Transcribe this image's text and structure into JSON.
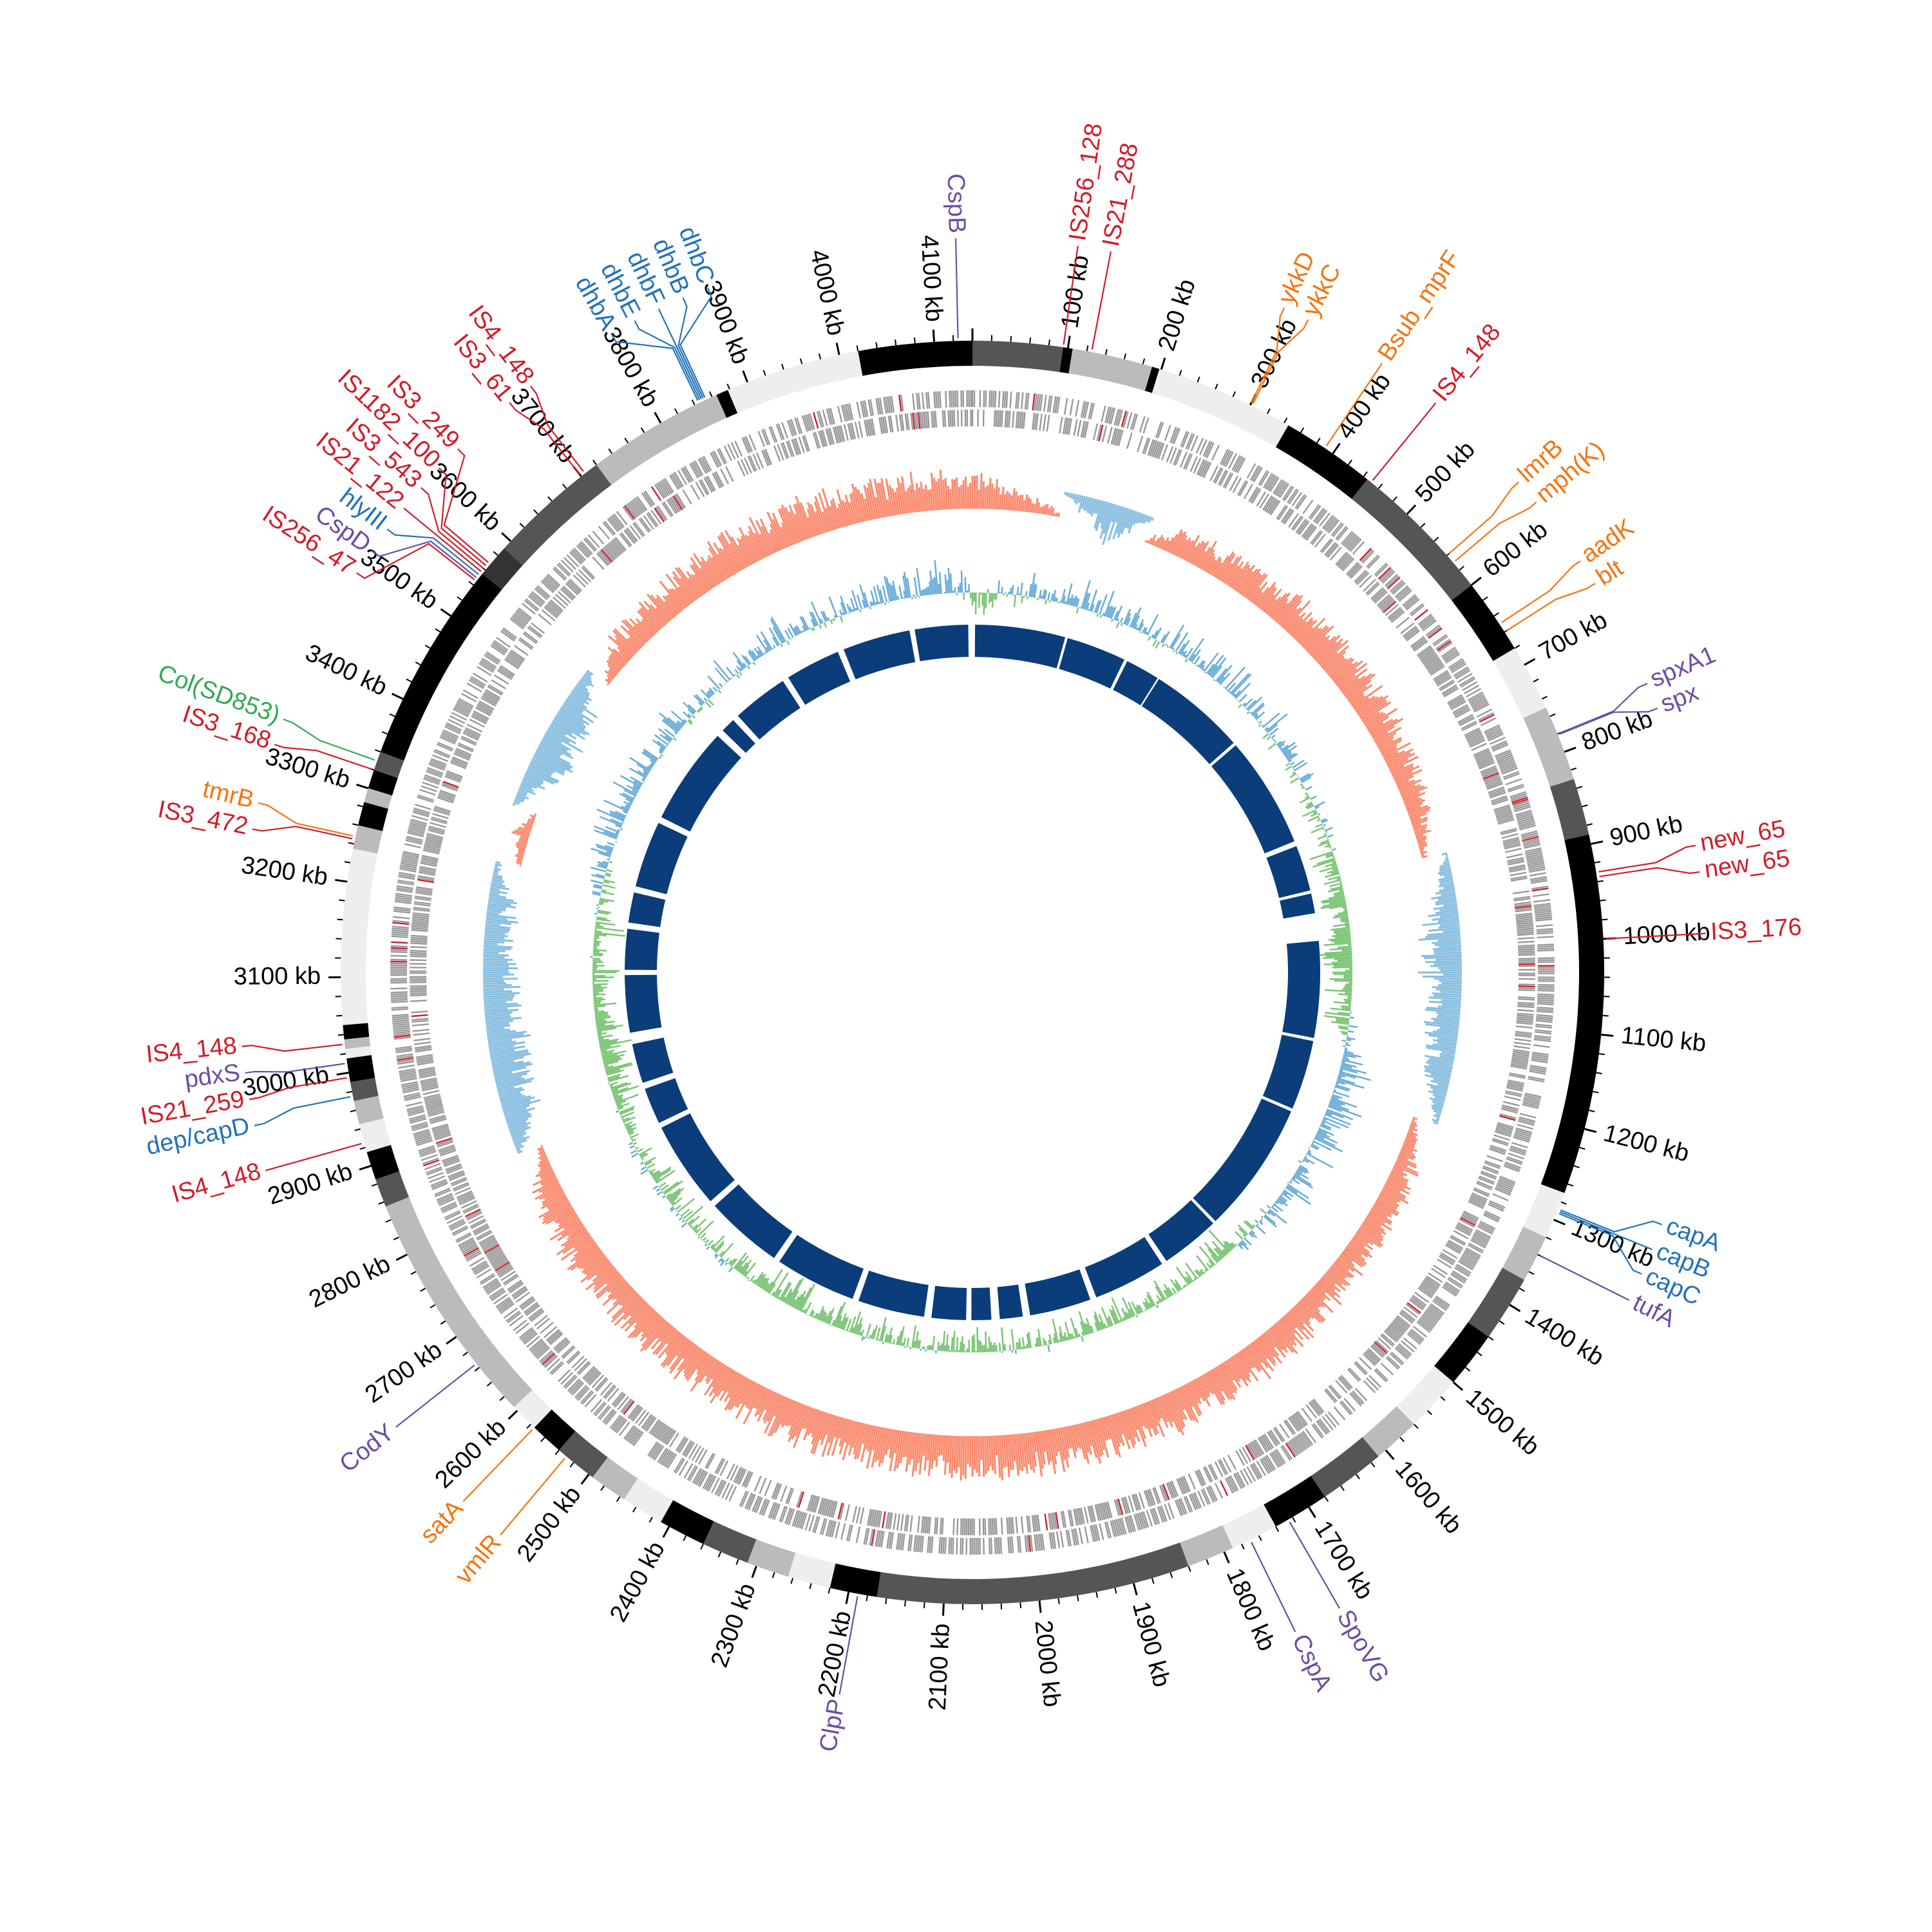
{
  "chart_data": {
    "type": "circular-genome",
    "title": "",
    "genome_length_kb": 4140,
    "tick_major_kb": 100,
    "tick_minor_kb": 20,
    "tick_unit": "kb",
    "colors": {
      "IS": "#d01c28",
      "resistance": "#f4740f",
      "stress": "#6a4ea3",
      "virulence": "#2272b8",
      "plasmid": "#33a852",
      "skew_pos": "#fa8a6e",
      "skew_neg": "#86bde0",
      "gc_pos": "#6aadd8",
      "gc_neg": "#7cc576",
      "contig_ring": "#0a3d7a",
      "genes": "#999999"
    },
    "contig_bands": [
      [
        0,
        95,
        "#555555"
      ],
      [
        95,
        105,
        "#000000"
      ],
      [
        105,
        190,
        "#bbbbbb"
      ],
      [
        190,
        198,
        "#000000"
      ],
      [
        198,
        345,
        "#eeeeee"
      ],
      [
        345,
        445,
        "#000000"
      ],
      [
        445,
        570,
        "#555555"
      ],
      [
        570,
        600,
        "#555555"
      ],
      [
        600,
        680,
        "#000000"
      ],
      [
        680,
        750,
        "#eeeeee"
      ],
      [
        750,
        830,
        "#bbbbbb"
      ],
      [
        830,
        890,
        "#555555"
      ],
      [
        890,
        1270,
        "#000000"
      ],
      [
        1270,
        1320,
        "#eeeeee"
      ],
      [
        1320,
        1370,
        "#bbbbbb"
      ],
      [
        1370,
        1440,
        "#555555"
      ],
      [
        1440,
        1500,
        "#000000"
      ],
      [
        1500,
        1560,
        "#eeeeee"
      ],
      [
        1560,
        1610,
        "#bbbbbb"
      ],
      [
        1610,
        1680,
        "#555555"
      ],
      [
        1680,
        1740,
        "#000000"
      ],
      [
        1740,
        1790,
        "#eeeeee"
      ],
      [
        1790,
        1840,
        "#bbbbbb"
      ],
      [
        1840,
        2170,
        "#555555"
      ],
      [
        2170,
        2220,
        "#000000"
      ],
      [
        2220,
        2265,
        "#eeeeee"
      ],
      [
        2265,
        2310,
        "#bbbbbb"
      ],
      [
        2310,
        2360,
        "#555555"
      ],
      [
        2360,
        2410,
        "#000000"
      ],
      [
        2410,
        2455,
        "#eeeeee"
      ],
      [
        2455,
        2495,
        "#bbbbbb"
      ],
      [
        2495,
        2540,
        "#555555"
      ],
      [
        2540,
        2575,
        "#000000"
      ],
      [
        2575,
        2605,
        "#eeeeee"
      ],
      [
        2605,
        2855,
        "#bbbbbb"
      ],
      [
        2855,
        2885,
        "#555555"
      ],
      [
        2885,
        2915,
        "#000000"
      ],
      [
        2915,
        2945,
        "#eeeeee"
      ],
      [
        2945,
        2970,
        "#bbbbbb"
      ],
      [
        2970,
        2990,
        "#555555"
      ],
      [
        2990,
        3015,
        "#000000"
      ],
      [
        3015,
        3025,
        "#eeeeee"
      ],
      [
        3025,
        3035,
        "#bbbbbb"
      ],
      [
        3035,
        3050,
        "#000000"
      ],
      [
        3050,
        3235,
        "#eeeeee"
      ],
      [
        3235,
        3260,
        "#bbbbbb"
      ],
      [
        3260,
        3285,
        "#000000"
      ],
      [
        3285,
        3300,
        "#bbbbbb"
      ],
      [
        3300,
        3320,
        "#000000"
      ],
      [
        3320,
        3340,
        "#555555"
      ],
      [
        3340,
        3555,
        "#000000"
      ],
      [
        3555,
        3590,
        "#333333"
      ],
      [
        3590,
        3720,
        "#555555"
      ],
      [
        3720,
        3865,
        "#bbbbbb"
      ],
      [
        3865,
        3878,
        "#000000"
      ],
      [
        3878,
        4020,
        "#eeeeee"
      ],
      [
        4020,
        4140,
        "#000000"
      ]
    ],
    "contig_segments_kb": [
      [
        5,
        178
      ],
      [
        183,
        298
      ],
      [
        304,
        370
      ],
      [
        373,
        560
      ],
      [
        566,
        780
      ],
      [
        790,
        878
      ],
      [
        884,
        922
      ],
      [
        975,
        1160
      ],
      [
        1166,
        1300
      ],
      [
        1306,
        1560
      ],
      [
        1566,
        1680
      ],
      [
        1690,
        1830
      ],
      [
        1842,
        1960
      ],
      [
        1974,
        2018
      ],
      [
        2034,
        2072
      ],
      [
        2082,
        2148
      ],
      [
        2162,
        2290
      ],
      [
        2302,
        2458
      ],
      [
        2470,
        2620
      ],
      [
        2632,
        2800
      ],
      [
        2810,
        2880
      ],
      [
        2892,
        2968
      ],
      [
        2990,
        3100
      ],
      [
        3110,
        3188
      ],
      [
        3200,
        3258
      ],
      [
        3270,
        3398
      ],
      [
        3410,
        3598
      ],
      [
        3612,
        3640
      ],
      [
        3652,
        3760
      ],
      [
        3772,
        3878
      ],
      [
        3890,
        4020
      ],
      [
        4030,
        4132
      ]
    ],
    "gc_skew_per_100kb": [
      0.7,
      0.2,
      -0.6,
      0.6,
      0.6,
      0.7,
      0.7,
      0.6,
      0.5,
      -0.2,
      -0.6,
      -0.5,
      -0.3,
      0.4,
      0.6,
      0.5,
      0.7,
      0.7,
      0.8,
      0.8,
      0.8,
      0.8,
      0.8,
      0.8,
      0.8,
      0.7,
      0.7,
      0.7,
      0.6,
      -0.5,
      -0.6,
      -0.5,
      -0.4,
      0.3,
      -0.6,
      -0.5,
      0.6,
      0.7,
      0.8,
      0.8,
      0.7,
      0.7
    ],
    "gc_content_per_100kb": [
      -0.4,
      0.3,
      0.3,
      0.2,
      0.3,
      0.3,
      0.2,
      0.1,
      -0.2,
      -0.5,
      -0.6,
      -0.4,
      0.5,
      0.4,
      0.3,
      0.2,
      -0.4,
      -0.3,
      -0.3,
      -0.2,
      -0.3,
      -0.3,
      -0.2,
      -0.3,
      -0.4,
      -0.3,
      -0.2,
      -0.2,
      -0.1,
      -0.4,
      -0.5,
      -0.4,
      -0.3,
      0.3,
      0.4,
      0.3,
      0.2,
      0.3,
      0.3,
      0.2,
      0.3,
      0.4
    ],
    "gene_density_per_100kb": [
      0.8,
      0.6,
      0.8,
      0.7,
      0.8,
      0.8,
      0.8,
      0.9,
      0.9,
      0.9,
      0.9,
      0.9,
      0.8,
      0.8,
      0.8,
      0.8,
      0.7,
      0.8,
      0.7,
      0.8,
      0.8,
      0.7,
      0.7,
      0.8,
      0.7,
      0.8,
      0.7,
      0.8,
      0.9,
      0.9,
      0.9,
      0.9,
      0.9,
      0.8,
      0.8,
      0.8,
      0.8,
      0.8,
      0.8,
      0.7,
      0.8,
      0.7
    ],
    "features": [
      {
        "text": "CspB",
        "kb": 4125,
        "cat": "stress"
      },
      {
        "text": "IS256_128",
        "kb": 95,
        "cat": "IS"
      },
      {
        "text": "IS21_288",
        "kb": 125,
        "cat": "IS"
      },
      {
        "text": "ykkD",
        "kb": 300,
        "cat": "resistance"
      },
      {
        "text": "ykkC",
        "kb": 302,
        "cat": "resistance"
      },
      {
        "text": "Bsub_mprF",
        "kb": 390,
        "cat": "resistance"
      },
      {
        "text": "IS4_148",
        "kb": 450,
        "cat": "IS"
      },
      {
        "text": "lmrB",
        "kb": 560,
        "cat": "resistance"
      },
      {
        "text": "mph(K)",
        "kb": 570,
        "cat": "resistance"
      },
      {
        "text": "aadK",
        "kb": 650,
        "cat": "resistance"
      },
      {
        "text": "blt",
        "kb": 660,
        "cat": "resistance"
      },
      {
        "text": "spxA1",
        "kb": 780,
        "cat": "stress"
      },
      {
        "text": "spx",
        "kb": 781,
        "cat": "stress"
      },
      {
        "text": "new_65",
        "kb": 930,
        "cat": "IS"
      },
      {
        "text": "new_65",
        "kb": 935,
        "cat": "IS"
      },
      {
        "text": "IS3_176",
        "kb": 1000,
        "cat": "IS"
      },
      {
        "text": "capA",
        "kb": 1288,
        "cat": "virulence"
      },
      {
        "text": "capB",
        "kb": 1290,
        "cat": "virulence"
      },
      {
        "text": "capC",
        "kb": 1292,
        "cat": "virulence"
      },
      {
        "text": "tufA",
        "kb": 1340,
        "cat": "stress"
      },
      {
        "text": "SpoVG",
        "kb": 1725,
        "cat": "stress"
      },
      {
        "text": "CspA",
        "kb": 1770,
        "cat": "stress"
      },
      {
        "text": "ClpP",
        "kb": 2190,
        "cat": "stress"
      },
      {
        "text": "vmlR",
        "kb": 2530,
        "cat": "resistance"
      },
      {
        "text": "satA",
        "kb": 2575,
        "cat": "resistance"
      },
      {
        "text": "CodY",
        "kb": 2665,
        "cat": "stress"
      },
      {
        "text": "IS4_148",
        "kb": 2925,
        "cat": "IS"
      },
      {
        "text": "dep/capD",
        "kb": 2975,
        "cat": "virulence"
      },
      {
        "text": "IS21_259",
        "kb": 2995,
        "cat": "IS"
      },
      {
        "text": "pdxS",
        "kb": 3010,
        "cat": "stress"
      },
      {
        "text": "IS4_148",
        "kb": 3030,
        "cat": "IS"
      },
      {
        "text": "IS3_472",
        "kb": 3245,
        "cat": "IS"
      },
      {
        "text": "tmrB",
        "kb": 3248,
        "cat": "resistance"
      },
      {
        "text": "IS3_168",
        "kb": 3320,
        "cat": "IS"
      },
      {
        "text": "Col(SD853)",
        "kb": 3330,
        "cat": "plasmid"
      },
      {
        "text": "IS256_47",
        "kb": 3545,
        "cat": "IS"
      },
      {
        "text": "CspD",
        "kb": 3548,
        "cat": "stress"
      },
      {
        "text": "hlyIII",
        "kb": 3552,
        "cat": "virulence"
      },
      {
        "text": "IS21_122",
        "kb": 3556,
        "cat": "IS"
      },
      {
        "text": "IS3_543",
        "kb": 3560,
        "cat": "IS"
      },
      {
        "text": "IS1182_100",
        "kb": 3564,
        "cat": "IS"
      },
      {
        "text": "IS3_249",
        "kb": 3568,
        "cat": "IS"
      },
      {
        "text": "IS3_61",
        "kb": 3700,
        "cat": "IS"
      },
      {
        "text": "IS4_148",
        "kb": 3705,
        "cat": "IS"
      },
      {
        "text": "dhbA",
        "kb": 3845,
        "cat": "virulence"
      },
      {
        "text": "dhbE",
        "kb": 3847,
        "cat": "virulence"
      },
      {
        "text": "dhbF",
        "kb": 3849,
        "cat": "virulence"
      },
      {
        "text": "dhbB",
        "kb": 3851,
        "cat": "virulence"
      },
      {
        "text": "dhbC",
        "kb": 3853,
        "cat": "virulence"
      }
    ]
  }
}
